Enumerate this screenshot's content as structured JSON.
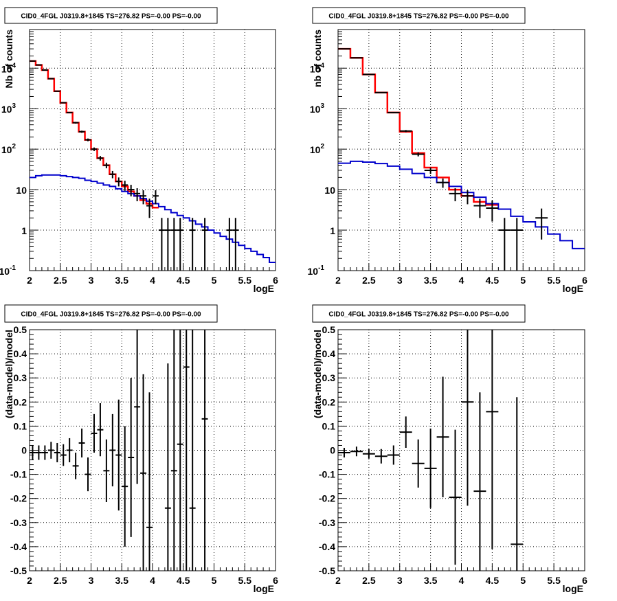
{
  "colors": {
    "data": "#000000",
    "model_total": "#ff0000",
    "model_component": "#0000cc"
  },
  "chart_data": [
    {
      "type": "line",
      "title": "CID0_4FGL J0319.8+1845 TS=276.82 PS=-0.00 PS=-0.00",
      "xlabel": "logE",
      "ylabel": "Nb of counts",
      "xlim": [
        2,
        6
      ],
      "ylim": [
        0.1,
        90000
      ],
      "yscale": "log",
      "grid": true,
      "xticks": [
        "2",
        "2.5",
        "3",
        "3.5",
        "4",
        "4.5",
        "5",
        "5.5",
        "6"
      ],
      "yticks": [
        {
          "base": "10",
          "exp": "-1"
        },
        {
          "base": "1",
          "exp": ""
        },
        {
          "base": "10",
          "exp": ""
        },
        {
          "base": "10",
          "exp": "2"
        },
        {
          "base": "10",
          "exp": "3"
        },
        {
          "base": "10",
          "exp": "4"
        }
      ],
      "series": [
        {
          "role": "model_total",
          "bin_edges": [
            2.0,
            2.1,
            2.2,
            2.3,
            2.4,
            2.5,
            2.6,
            2.7,
            2.8,
            2.9,
            3.0,
            3.1,
            3.2,
            3.3,
            3.4,
            3.5,
            3.6,
            3.7,
            3.8,
            3.9,
            4.0,
            4.1
          ],
          "values": [
            15000,
            12000,
            9000,
            5500,
            2700,
            1400,
            800,
            450,
            270,
            170,
            100,
            60,
            40,
            24,
            16,
            12,
            9,
            7,
            5.5,
            4.5,
            3.6
          ]
        },
        {
          "role": "model_component",
          "bin_edges": [
            2.0,
            2.1,
            2.2,
            2.3,
            2.4,
            2.5,
            2.6,
            2.7,
            2.8,
            2.9,
            3.0,
            3.1,
            3.2,
            3.3,
            3.4,
            3.5,
            3.6,
            3.7,
            3.8,
            3.9,
            4.0,
            4.1,
            4.2,
            4.3,
            4.4,
            4.5,
            4.6,
            4.7,
            4.8,
            4.9,
            5.0,
            5.1,
            5.2,
            5.3,
            5.4,
            5.5,
            5.6,
            5.7,
            5.8,
            5.9,
            6.0
          ],
          "values": [
            20,
            22,
            23,
            23,
            23,
            22,
            21,
            20,
            19,
            17,
            16,
            14.5,
            13,
            12,
            10.5,
            9,
            8,
            7,
            6,
            5.2,
            4.5,
            3.8,
            3.2,
            2.7,
            2.3,
            2.0,
            1.7,
            1.4,
            1.2,
            1.0,
            0.85,
            0.7,
            0.6,
            0.5,
            0.42,
            0.35,
            0.3,
            0.25,
            0.21,
            0.16
          ]
        },
        {
          "role": "data",
          "x": [
            2.05,
            2.15,
            2.25,
            2.35,
            2.45,
            2.55,
            2.65,
            2.75,
            2.85,
            2.95,
            3.05,
            3.15,
            3.25,
            3.35,
            3.45,
            3.55,
            3.65,
            3.75,
            3.85,
            3.95,
            4.05,
            4.15,
            4.25,
            4.35,
            4.45,
            4.65,
            4.85,
            5.25,
            5.35
          ],
          "y": [
            15000,
            12000,
            9000,
            5500,
            2700,
            1400,
            800,
            450,
            270,
            170,
            100,
            60,
            40,
            24,
            16,
            13,
            10,
            8,
            7,
            4,
            7,
            1,
            1,
            1,
            1,
            1,
            1,
            1,
            1
          ],
          "xerr": 0.05
        }
      ]
    },
    {
      "type": "line",
      "title": "CID0_4FGL J0319.8+1845 TS=276.82 PS=-0.00 PS=-0.00",
      "xlabel": "logE",
      "ylabel": "nb of counts",
      "xlim": [
        2,
        6
      ],
      "ylim": [
        0.1,
        90000
      ],
      "yscale": "log",
      "grid": true,
      "xticks": [
        "2",
        "2.5",
        "3",
        "3.5",
        "4",
        "4.5",
        "5",
        "5.5",
        "6"
      ],
      "yticks": [
        {
          "base": "10",
          "exp": "-1"
        },
        {
          "base": "1",
          "exp": ""
        },
        {
          "base": "10",
          "exp": ""
        },
        {
          "base": "10",
          "exp": "2"
        },
        {
          "base": "10",
          "exp": "3"
        },
        {
          "base": "10",
          "exp": "4"
        }
      ],
      "series": [
        {
          "role": "model_total",
          "bin_edges": [
            2.0,
            2.2,
            2.4,
            2.6,
            2.8,
            3.0,
            3.2,
            3.4,
            3.6,
            3.8,
            4.0,
            4.2,
            4.4,
            4.6
          ],
          "values": [
            30000,
            18000,
            7000,
            2500,
            800,
            270,
            80,
            35,
            20,
            10,
            7,
            5,
            4.2
          ]
        },
        {
          "role": "model_component",
          "bin_edges": [
            2.0,
            2.2,
            2.4,
            2.6,
            2.8,
            3.0,
            3.2,
            3.4,
            3.6,
            3.8,
            4.0,
            4.2,
            4.4,
            4.6,
            4.8,
            5.0,
            5.2,
            5.4,
            5.6,
            5.8,
            6.0
          ],
          "values": [
            45,
            50,
            48,
            44,
            38,
            32,
            25,
            20,
            15,
            12,
            8.5,
            6.5,
            4.5,
            3.3,
            2.2,
            1.6,
            1.2,
            0.8,
            0.55,
            0.35
          ]
        },
        {
          "role": "data",
          "x": [
            2.1,
            2.3,
            2.5,
            2.7,
            2.9,
            3.1,
            3.3,
            3.5,
            3.7,
            3.9,
            4.1,
            4.3,
            4.5,
            4.7,
            4.9,
            5.3
          ],
          "y": [
            30000,
            18000,
            7000,
            2500,
            800,
            280,
            75,
            30,
            15,
            8,
            7,
            4,
            3.5,
            1,
            1,
            2
          ],
          "xerr": 0.1
        }
      ]
    },
    {
      "type": "scatter",
      "title": "CID0_4FGL J0319.8+1845 TS=276.82 PS=-0.00 PS=-0.00",
      "xlabel": "logE",
      "ylabel": "(data-model)/model",
      "xlim": [
        2,
        6
      ],
      "ylim": [
        -0.5,
        0.5
      ],
      "grid": true,
      "xticks": [
        "2",
        "2.5",
        "3",
        "3.5",
        "4",
        "4.5",
        "5",
        "5.5",
        "6"
      ],
      "ytick_values": [
        -0.5,
        -0.4,
        -0.3,
        -0.2,
        -0.1,
        0,
        0.1,
        0.2,
        0.3,
        0.4,
        0.5
      ],
      "ytick_labels": [
        "-0.5",
        "-0.4",
        "-0.3",
        "-0.2",
        "-0.1",
        "0",
        "0.1",
        "0.2",
        "0.3",
        "0.4",
        "0.5"
      ],
      "series": [
        {
          "role": "data",
          "x": [
            2.05,
            2.15,
            2.25,
            2.35,
            2.45,
            2.55,
            2.65,
            2.75,
            2.85,
            2.95,
            3.05,
            3.15,
            3.25,
            3.35,
            3.45,
            3.55,
            3.65,
            3.75,
            3.85,
            3.95,
            4.25,
            4.35,
            4.45,
            4.55,
            4.65,
            4.85
          ],
          "y": [
            -0.01,
            -0.01,
            -0.01,
            0.0,
            -0.01,
            -0.02,
            0.0,
            -0.065,
            0.03,
            -0.1,
            0.07,
            0.085,
            -0.085,
            0.0,
            -0.02,
            -0.15,
            -0.03,
            0.18,
            -0.095,
            -0.32,
            -0.24,
            -0.085,
            0.025,
            0.345,
            -0.24,
            0.13
          ],
          "yerr": [
            0.03,
            0.03,
            0.03,
            0.035,
            0.04,
            0.045,
            0.05,
            0.055,
            0.06,
            0.07,
            0.08,
            0.11,
            0.13,
            0.15,
            0.23,
            0.25,
            0.33,
            0.32,
            0.41,
            0.56,
            0.6,
            0.82,
            1.0,
            1.0,
            1.0,
            1.0
          ],
          "xerr": 0.05
        }
      ]
    },
    {
      "type": "scatter",
      "title": "CID0_4FGL J0319.8+1845 TS=276.82 PS=-0.00 PS=-0.00",
      "xlabel": "logE",
      "ylabel": "(data-model)/model",
      "xlim": [
        2,
        6
      ],
      "ylim": [
        -0.5,
        0.5
      ],
      "grid": true,
      "xticks": [
        "2",
        "2.5",
        "3",
        "3.5",
        "4",
        "4.5",
        "5",
        "5.5",
        "6"
      ],
      "ytick_values": [
        -0.5,
        -0.4,
        -0.3,
        -0.2,
        -0.1,
        0,
        0.1,
        0.2,
        0.3,
        0.4,
        0.5
      ],
      "ytick_labels": [
        "-0.5",
        "-0.4",
        "-0.3",
        "-0.2",
        "-0.1",
        "0",
        "0.1",
        "0.2",
        "0.3",
        "0.4",
        "0.5"
      ],
      "series": [
        {
          "role": "data",
          "x": [
            2.1,
            2.3,
            2.5,
            2.7,
            2.9,
            3.1,
            3.3,
            3.5,
            3.7,
            3.9,
            4.1,
            4.3,
            4.5,
            4.9
          ],
          "y": [
            -0.01,
            -0.005,
            -0.015,
            -0.025,
            -0.02,
            0.075,
            -0.055,
            -0.075,
            0.055,
            -0.195,
            0.2,
            -0.17,
            0.16,
            -0.39
          ],
          "yerr": [
            0.02,
            0.02,
            0.02,
            0.03,
            0.04,
            0.065,
            0.1,
            0.165,
            0.25,
            0.28,
            0.43,
            0.41,
            0.57,
            0.61
          ],
          "xerr": 0.1
        }
      ]
    }
  ]
}
